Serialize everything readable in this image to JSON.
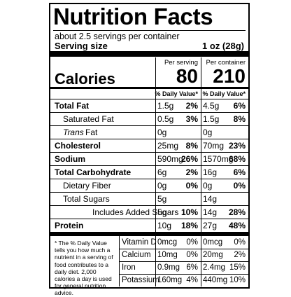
{
  "header": {
    "title": "Nutrition Facts",
    "servings": "about 2.5 servings per container",
    "serving_size_label": "Serving size",
    "serving_size": "1 oz (28g)"
  },
  "calories": {
    "label": "Calories",
    "columns": [
      {
        "heading": "Per serving",
        "value": "80"
      },
      {
        "heading": "Per container",
        "value": "210"
      }
    ]
  },
  "dv_headings": [
    "% Daily Value*",
    "% Daily Value*"
  ],
  "nutrients": [
    {
      "name": "Total Fat",
      "bold": true,
      "indent": 0,
      "serving": "1.5g",
      "serving_dv": "2%",
      "container": "4.5g",
      "container_dv": "6%"
    },
    {
      "name": "Saturated Fat",
      "bold": false,
      "indent": 1,
      "serving": "0.5g",
      "serving_dv": "3%",
      "container": "1.5g",
      "container_dv": "8%"
    },
    {
      "name_italic": "Trans",
      "name": "Fat",
      "bold": false,
      "indent": 1,
      "serving": "0g",
      "container": "0g"
    },
    {
      "name": "Cholesterol",
      "bold": true,
      "indent": 0,
      "serving": "25mg",
      "serving_dv": "8%",
      "container": "70mg",
      "container_dv": "23%"
    },
    {
      "name": "Sodium",
      "bold": true,
      "indent": 0,
      "serving": "590mg",
      "serving_dv": "26%",
      "container": "1570mg",
      "container_dv": "68%"
    },
    {
      "name": "Total Carbohydrate",
      "bold": true,
      "indent": 0,
      "serving": "6g",
      "serving_dv": "2%",
      "container": "16g",
      "container_dv": "6%"
    },
    {
      "name": "Dietary Fiber",
      "bold": false,
      "indent": 1,
      "serving": "0g",
      "serving_dv": "0%",
      "container": "0g",
      "container_dv": "0%"
    },
    {
      "name": "Total Sugars",
      "bold": false,
      "indent": 1,
      "serving": "5g",
      "container": "14g"
    },
    {
      "name": "Includes Added Sugars",
      "bold": false,
      "indent": 2,
      "serving": "5g",
      "serving_dv": "10%",
      "container": "14g",
      "container_dv": "28%"
    },
    {
      "name": "Protein",
      "bold": true,
      "indent": 0,
      "serving": "10g",
      "serving_dv": "18%",
      "container": "27g",
      "container_dv": "48%"
    }
  ],
  "footnote": "* The % Daily Value tells you how much a nutrient in a serving of food contributes to a daily diet. 2,000 calories a day is used for general nutrition advice.",
  "vitamins": [
    {
      "name": "Vitamin D",
      "serving": "0mcg",
      "serving_dv": "0%",
      "container": "0mcg",
      "container_dv": "0%"
    },
    {
      "name": "Calcium",
      "serving": "10mg",
      "serving_dv": "0%",
      "container": "20mg",
      "container_dv": "2%"
    },
    {
      "name": "Iron",
      "serving": "0.9mg",
      "serving_dv": "6%",
      "container": "2.4mg",
      "container_dv": "15%"
    },
    {
      "name": "Potassium",
      "serving": "160mg",
      "serving_dv": "4%",
      "container": "440mg",
      "container_dv": "10%"
    }
  ]
}
